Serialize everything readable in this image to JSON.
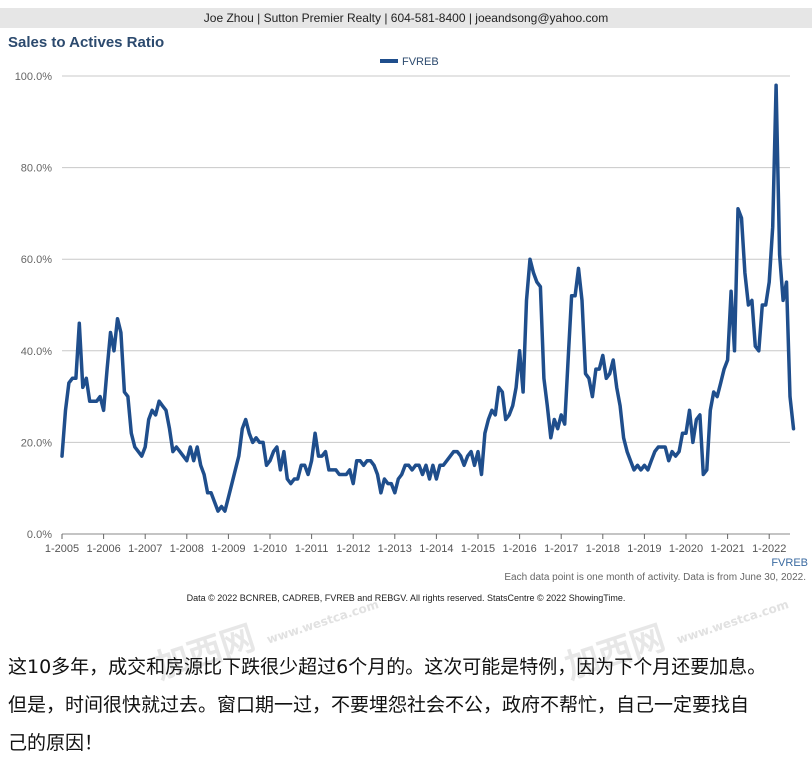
{
  "header": {
    "text": "Joe Zhou | Sutton Premier Realty | 604-581-8400 | joeandsong@yahoo.com"
  },
  "chart_title": "Sales to Actives Ratio",
  "legend": {
    "label": "FVREB",
    "color": "#1f4e8c"
  },
  "series_end_label": "FVREB",
  "footnote_right": "Each data point is one month of activity. Data is from June 30, 2022.",
  "footnote_center": "Data © 2022 BCNREB, CADREB, FVREB and REBGV. All rights reserved. StatsCentre © 2022 ShowingTime.",
  "watermark": {
    "text": "加西网",
    "small": "www.westca.com"
  },
  "caption": {
    "line1": "这10多年，成交和房源比下跌很少超过6个月的。这次可能是特例，因为下个月还要加息。",
    "line2": "但是，时间很快就过去。窗口期一过，不要埋怨社会不公，政府不帮忙，自己一定要找自",
    "line3": "己的原因！"
  },
  "chart_data": {
    "type": "line",
    "title": "Sales to Actives Ratio",
    "ylim": [
      0,
      100
    ],
    "y_ticks": [
      "0.0%",
      "20.0%",
      "40.0%",
      "60.0%",
      "80.0%",
      "100.0%"
    ],
    "x_ticks": [
      "1-2005",
      "1-2006",
      "1-2007",
      "1-2008",
      "1-2009",
      "1-2010",
      "1-2011",
      "1-2012",
      "1-2013",
      "1-2014",
      "1-2015",
      "1-2016",
      "1-2017",
      "1-2018",
      "1-2019",
      "1-2020",
      "1-2021",
      "1-2022"
    ],
    "grid": true,
    "legend_position": "top-center",
    "x_start": "1-2005",
    "x_end": "6-2022",
    "series": [
      {
        "name": "FVREB",
        "color": "#1f4e8c",
        "values": [
          17,
          27,
          33,
          34,
          34,
          46,
          32,
          34,
          29,
          29,
          29,
          30,
          27,
          36,
          44,
          40,
          47,
          44,
          31,
          30,
          22,
          19,
          18,
          17,
          19,
          25,
          27,
          26,
          29,
          28,
          27,
          23,
          18,
          19,
          18,
          17,
          16,
          19,
          16,
          19,
          15,
          13,
          9,
          9,
          7,
          5,
          6,
          5,
          8,
          11,
          14,
          17,
          23,
          25,
          22,
          20,
          21,
          20,
          20,
          15,
          16,
          18,
          19,
          14,
          18,
          12,
          11,
          12,
          12,
          15,
          15,
          13,
          16,
          22,
          17,
          17,
          18,
          14,
          14,
          14,
          13,
          13,
          13,
          14,
          11,
          16,
          16,
          15,
          16,
          16,
          15,
          13,
          9,
          12,
          11,
          11,
          9,
          12,
          13,
          15,
          15,
          14,
          15,
          15,
          13,
          15,
          12,
          15,
          12,
          15,
          15,
          16,
          17,
          18,
          18,
          17,
          15,
          17,
          18,
          15,
          18,
          13,
          22,
          25,
          27,
          26,
          32,
          31,
          25,
          26,
          28,
          32,
          40,
          31,
          51,
          60,
          57,
          55,
          54,
          34,
          28,
          21,
          25,
          23,
          26,
          24,
          38,
          52,
          52,
          58,
          51,
          35,
          34,
          30,
          36,
          36,
          39,
          34,
          35,
          38,
          32,
          28,
          21,
          18,
          16,
          14,
          15,
          14,
          15,
          14,
          16,
          18,
          19,
          19,
          19,
          16,
          18,
          17,
          18,
          22,
          22,
          27,
          20,
          25,
          26,
          13,
          14,
          27,
          31,
          30,
          33,
          36,
          38,
          53,
          40,
          71,
          69,
          57,
          50,
          51,
          41,
          40,
          50,
          50,
          55,
          67,
          98,
          61,
          51,
          55,
          30,
          23
        ]
      }
    ]
  }
}
